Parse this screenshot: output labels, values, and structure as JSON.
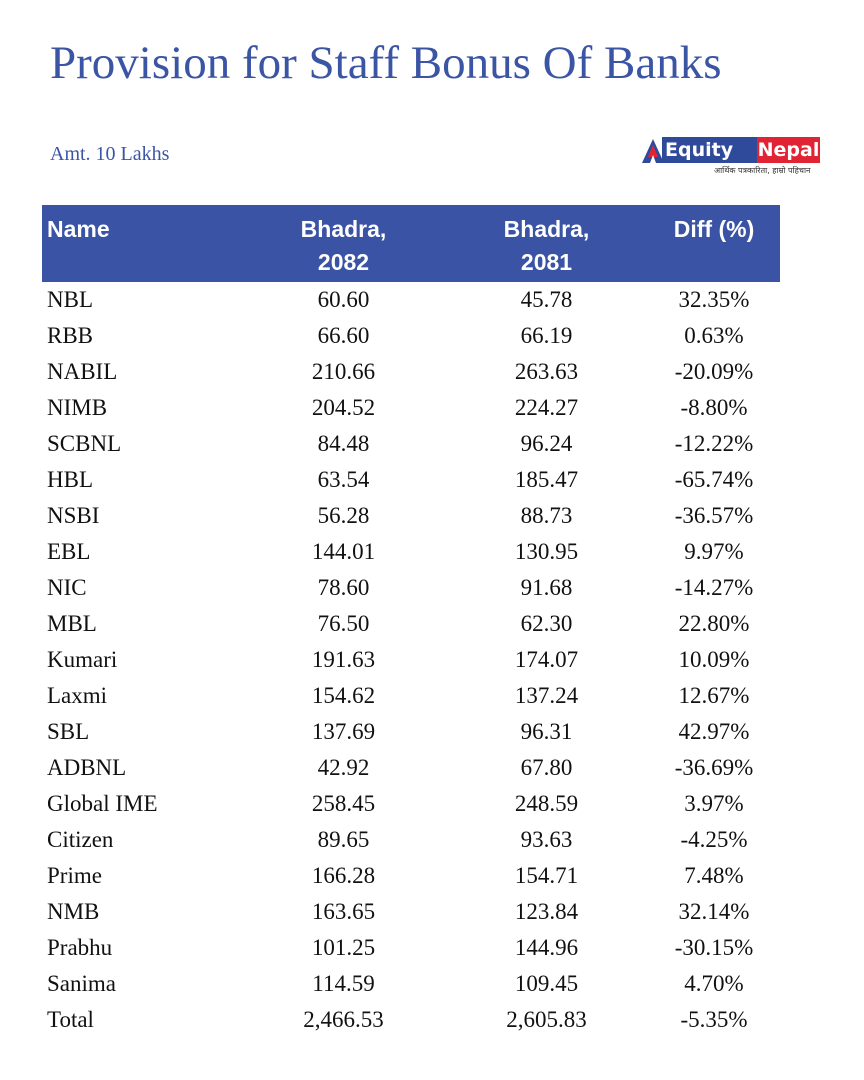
{
  "title": "Provision for Staff Bonus Of Banks",
  "subtitle": "Amt. 10 Lakhs",
  "logo": {
    "text_left": "Equity",
    "text_right": "Nepal",
    "tagline": "आर्थिक पत्रकारिता, हाम्रो पहिचान",
    "colors": {
      "blue": "#2f4a9a",
      "red": "#e02433"
    }
  },
  "colors": {
    "header_bg": "#3a53a4",
    "title": "#3b55a5"
  },
  "chart_data": {
    "type": "table",
    "columns": [
      "Name",
      "Bhadra, 2082",
      "Bhadra, 2081",
      "Diff (%)"
    ],
    "column_lines": [
      [
        "Name"
      ],
      [
        "Bhadra,",
        "2082"
      ],
      [
        "Bhadra,",
        "2081"
      ],
      [
        "Diff (%)"
      ]
    ],
    "rows": [
      [
        "NBL",
        "60.60",
        "45.78",
        "32.35%"
      ],
      [
        "RBB",
        "66.60",
        "66.19",
        "0.63%"
      ],
      [
        "NABIL",
        "210.66",
        "263.63",
        "-20.09%"
      ],
      [
        "NIMB",
        "204.52",
        "224.27",
        "-8.80%"
      ],
      [
        "SCBNL",
        "84.48",
        "96.24",
        "-12.22%"
      ],
      [
        "HBL",
        "63.54",
        "185.47",
        "-65.74%"
      ],
      [
        "NSBI",
        "56.28",
        "88.73",
        "-36.57%"
      ],
      [
        "EBL",
        "144.01",
        "130.95",
        "9.97%"
      ],
      [
        "NIC",
        "78.60",
        "91.68",
        "-14.27%"
      ],
      [
        "MBL",
        "76.50",
        "62.30",
        "22.80%"
      ],
      [
        "Kumari",
        "191.63",
        "174.07",
        "10.09%"
      ],
      [
        "Laxmi",
        "154.62",
        "137.24",
        "12.67%"
      ],
      [
        "SBL",
        "137.69",
        "96.31",
        "42.97%"
      ],
      [
        "ADBNL",
        "42.92",
        "67.80",
        "-36.69%"
      ],
      [
        "Global IME",
        "258.45",
        "248.59",
        "3.97%"
      ],
      [
        "Citizen",
        "89.65",
        "93.63",
        "-4.25%"
      ],
      [
        "Prime",
        "166.28",
        "154.71",
        "7.48%"
      ],
      [
        "NMB",
        "163.65",
        "123.84",
        "32.14%"
      ],
      [
        "Prabhu",
        "101.25",
        "144.96",
        "-30.15%"
      ],
      [
        "Sanima",
        "114.59",
        "109.45",
        "4.70%"
      ],
      [
        "Total",
        "2,466.53",
        "2,605.83",
        "-5.35%"
      ]
    ]
  }
}
